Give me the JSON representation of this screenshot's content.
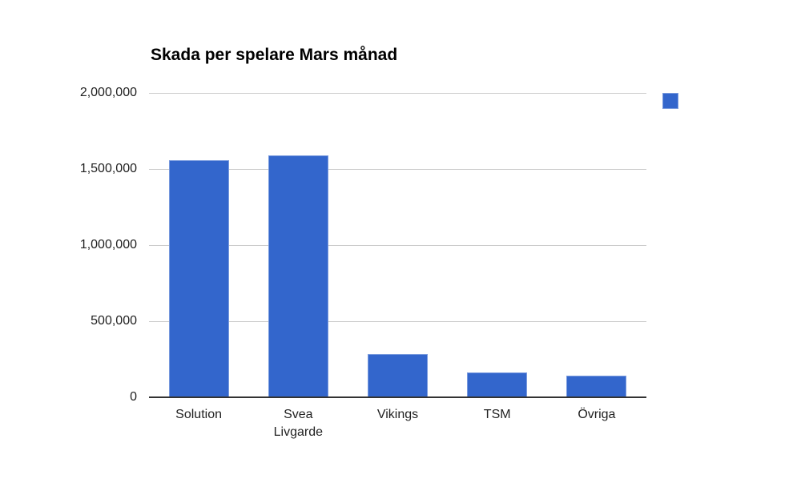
{
  "chart_data": {
    "type": "bar",
    "title": "Skada per spelare Mars månad",
    "categories": [
      "Solution",
      "Svea Livgarde",
      "Vikings",
      "TSM",
      "Övriga"
    ],
    "values": [
      1560000,
      1590000,
      283000,
      165000,
      144000
    ],
    "ylim": [
      0,
      2000000
    ],
    "yticks": [
      0,
      500000,
      1000000,
      1500000,
      2000000
    ],
    "ytick_labels": [
      "0",
      "500,000",
      "1,000,000",
      "1,500,000",
      "2,000,000"
    ],
    "xlabel": "",
    "ylabel": "",
    "grid": true,
    "legend_position": "top-right",
    "legend_label": "",
    "colors": {
      "bar": "#3366cc",
      "gridline": "#cccccc",
      "axis": "#333333",
      "text": "#222222",
      "title": "#000000",
      "background": "#ffffff"
    }
  }
}
